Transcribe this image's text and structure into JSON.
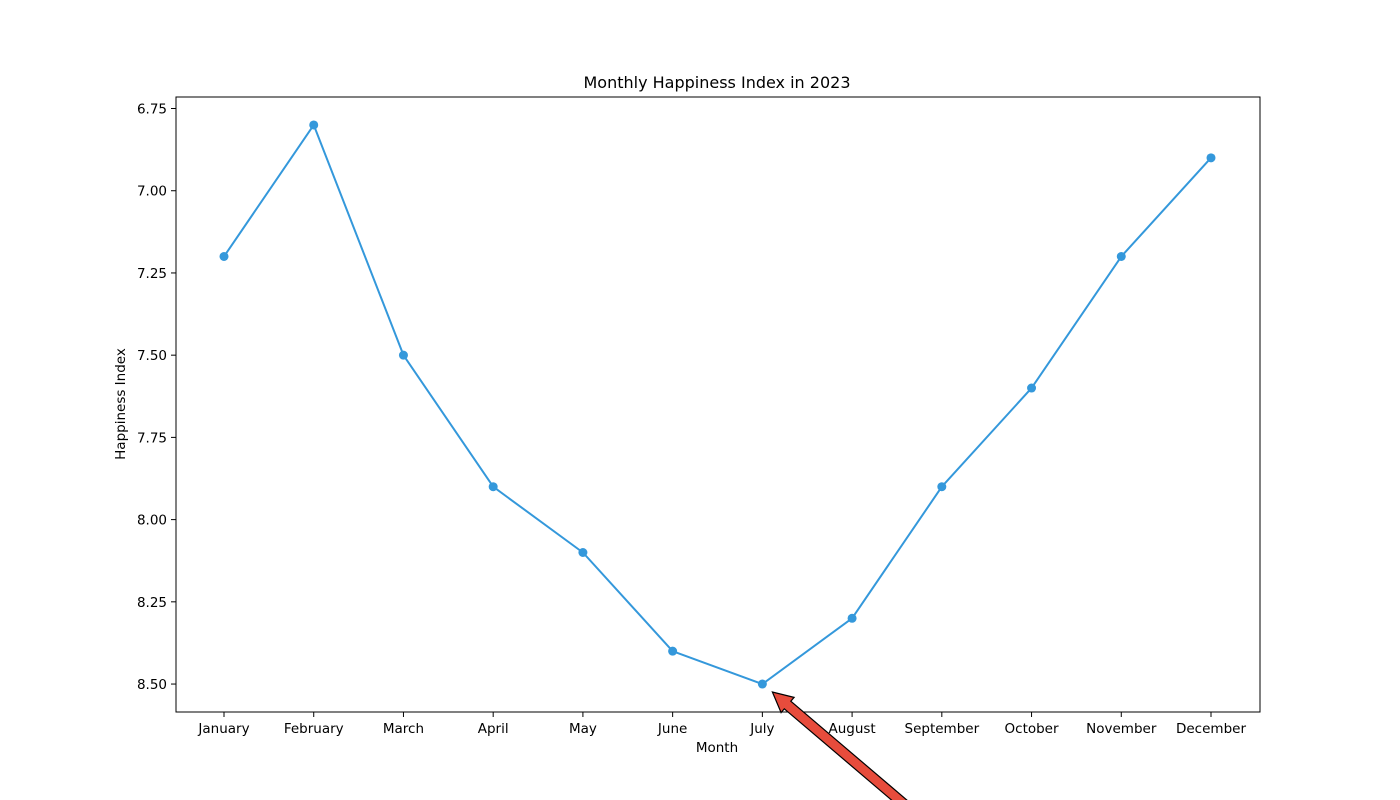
{
  "chart_data": {
    "type": "line",
    "title": "Monthly Happiness Index in 2023",
    "xlabel": "Month",
    "ylabel": "Happiness Index",
    "categories": [
      "January",
      "February",
      "March",
      "April",
      "May",
      "June",
      "July",
      "August",
      "September",
      "October",
      "November",
      "December"
    ],
    "series": [
      {
        "values": [
          7.2,
          6.8,
          7.5,
          7.9,
          8.1,
          8.4,
          8.5,
          8.3,
          7.9,
          7.6,
          7.2,
          6.9
        ],
        "color": "#3498db",
        "marker": "circle"
      }
    ],
    "ylim": [
      8.585,
      6.715
    ],
    "y_inverted": true,
    "yticks": [
      6.75,
      7.0,
      7.25,
      7.5,
      7.75,
      8.0,
      8.25,
      8.5
    ],
    "ytick_labels": [
      "6.75",
      "7.00",
      "7.25",
      "7.50",
      "7.75",
      "8.00",
      "8.25",
      "8.50"
    ],
    "grid": false,
    "annotation": {
      "type": "arrow",
      "target_category": "July",
      "target_value": 8.5,
      "color": "#e74c3c",
      "text": ""
    }
  }
}
